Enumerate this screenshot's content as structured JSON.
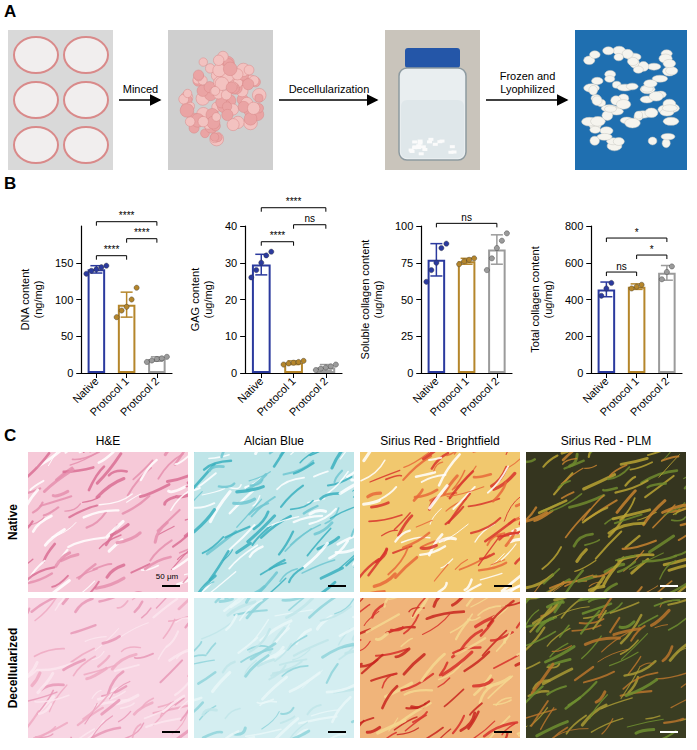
{
  "panels": {
    "A": {
      "label": "A",
      "steps": [
        "Minced",
        "Decellularization",
        "Frozen and Lyophilized"
      ]
    },
    "B": {
      "label": "B"
    },
    "C": {
      "label": "C",
      "columns": [
        "H&E",
        "Alcian Blue",
        "Sirius Red - Brightfield",
        "Sirius Red - PLM"
      ],
      "rows": [
        "Native",
        "Decellularized"
      ],
      "scale_bar": "50 μm"
    }
  },
  "chart_data": [
    {
      "type": "bar",
      "y_label": "DNA content (ng/mg)",
      "categories": [
        "Native",
        "Protocol 1",
        "Protocol 2"
      ],
      "values": [
        141,
        93,
        19
      ],
      "errors": [
        5,
        17,
        3
      ],
      "points": [
        [
          135,
          139,
          141,
          144,
          146
        ],
        [
          76,
          85,
          90,
          100,
          116
        ],
        [
          15,
          17,
          19,
          20,
          22
        ]
      ],
      "colors": [
        "#2b3a9e",
        "#b5862b",
        "#9b9b9b"
      ],
      "ylim": [
        0,
        200
      ],
      "yticks": [
        0,
        50,
        100,
        150
      ],
      "comparisons": [
        {
          "pair": [
            "Native",
            "Protocol 1"
          ],
          "label": "****"
        },
        {
          "pair": [
            "Native",
            "Protocol 2"
          ],
          "label": "****"
        },
        {
          "pair": [
            "Protocol 1",
            "Protocol 2"
          ],
          "label": "****"
        }
      ]
    },
    {
      "type": "bar",
      "y_label": "GAG content (ug/mg)",
      "categories": [
        "Native",
        "Protocol 1",
        "Protocol 2"
      ],
      "values": [
        29.5,
        2.8,
        1.5
      ],
      "errors": [
        2.8,
        0.5,
        0.8
      ],
      "points": [
        [
          26,
          28,
          30,
          32,
          33
        ],
        [
          2.3,
          2.6,
          2.8,
          3.0,
          3.3
        ],
        [
          0.8,
          1.2,
          1.5,
          1.8,
          2.3
        ]
      ],
      "colors": [
        "#2b3a9e",
        "#b5862b",
        "#9b9b9b"
      ],
      "ylim": [
        0,
        40
      ],
      "yticks": [
        0,
        10,
        20,
        30,
        40
      ],
      "comparisons": [
        {
          "pair": [
            "Native",
            "Protocol 1"
          ],
          "label": "****"
        },
        {
          "pair": [
            "Native",
            "Protocol 2"
          ],
          "label": "****"
        },
        {
          "pair": [
            "Protocol 1",
            "Protocol 2"
          ],
          "label": "ns"
        }
      ]
    },
    {
      "type": "bar",
      "y_label": "Soluble collagen content (ug/mg)",
      "categories": [
        "Native",
        "Protocol 1",
        "Protocol 2"
      ],
      "values": [
        77,
        76,
        84
      ],
      "errors": [
        11,
        2,
        10
      ],
      "points": [
        [
          62,
          70,
          75,
          85,
          88
        ],
        [
          74,
          76,
          77,
          78
        ],
        [
          70,
          78,
          85,
          90,
          95
        ]
      ],
      "colors": [
        "#2b3a9e",
        "#b5862b",
        "#9b9b9b"
      ],
      "ylim": [
        0,
        100
      ],
      "yticks": [
        0,
        25,
        50,
        75,
        100
      ],
      "comparisons": [
        {
          "pair": [
            "Native",
            "Protocol 2"
          ],
          "label": "ns"
        }
      ]
    },
    {
      "type": "bar",
      "y_label": "Total collagen content (ug/mg)",
      "categories": [
        "Native",
        "Protocol 1",
        "Protocol 2"
      ],
      "values": [
        455,
        470,
        545
      ],
      "errors": [
        40,
        15,
        40
      ],
      "points": [
        [
          420,
          460,
          490
        ],
        [
          460,
          470,
          480
        ],
        [
          510,
          550,
          580
        ]
      ],
      "colors": [
        "#2b3a9e",
        "#b5862b",
        "#9b9b9b"
      ],
      "ylim": [
        0,
        800
      ],
      "yticks": [
        0,
        200,
        400,
        600,
        800
      ],
      "comparisons": [
        {
          "pair": [
            "Native",
            "Protocol 1"
          ],
          "label": "ns"
        },
        {
          "pair": [
            "Native",
            "Protocol 2"
          ],
          "label": "*"
        },
        {
          "pair": [
            "Protocol 1",
            "Protocol 2"
          ],
          "label": "*"
        }
      ]
    }
  ]
}
